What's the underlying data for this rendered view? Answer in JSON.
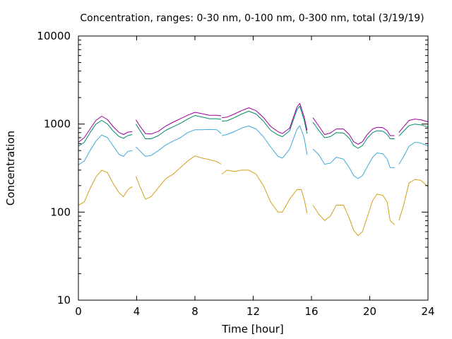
{
  "chart_data": {
    "type": "line",
    "title": "Concentration, ranges: 0-30 nm, 0-100 nm, 0-300 nm, total (3/19/19)",
    "xlabel": "Time [hour]",
    "ylabel": "Concentration",
    "xlim": [
      0,
      24
    ],
    "ylim": [
      10,
      10000
    ],
    "yscale": "log",
    "grid": false,
    "legend": "none",
    "x_ticks": [
      0,
      4,
      8,
      12,
      16,
      20,
      24
    ],
    "x_tick_labels": [
      "0",
      "4",
      "8",
      "12",
      "16",
      "20",
      "24"
    ],
    "y_ticks": [
      10,
      100,
      1000,
      10000
    ],
    "y_tick_labels": [
      "10",
      "100",
      "1000",
      "10000"
    ],
    "series": [
      {
        "color": "#d4a017",
        "segments": [
          [
            [
              0,
              120
            ],
            [
              0.4,
              130
            ],
            [
              0.8,
              185
            ],
            [
              1.2,
              250
            ],
            [
              1.6,
              300
            ],
            [
              2.0,
              280
            ],
            [
              2.4,
              210
            ],
            [
              2.8,
              165
            ],
            [
              3.1,
              150
            ],
            [
              3.4,
              180
            ],
            [
              3.7,
              195
            ]
          ],
          [
            [
              3.95,
              255
            ],
            [
              4.2,
              200
            ],
            [
              4.6,
              140
            ],
            [
              5.0,
              150
            ],
            [
              5.5,
              190
            ],
            [
              6.0,
              240
            ],
            [
              6.5,
              270
            ],
            [
              7.0,
              320
            ],
            [
              7.5,
              380
            ],
            [
              8.0,
              435
            ],
            [
              8.5,
              410
            ],
            [
              9.0,
              395
            ],
            [
              9.5,
              375
            ],
            [
              9.8,
              350
            ]
          ],
          [
            [
              9.85,
              270
            ],
            [
              10.2,
              300
            ],
            [
              10.7,
              290
            ],
            [
              11.2,
              300
            ],
            [
              11.7,
              300
            ],
            [
              12.2,
              270
            ],
            [
              12.7,
              200
            ],
            [
              13.2,
              130
            ],
            [
              13.7,
              100
            ],
            [
              14.0,
              100
            ],
            [
              14.5,
              140
            ],
            [
              15.0,
              180
            ],
            [
              15.3,
              180
            ],
            [
              15.5,
              140
            ],
            [
              15.7,
              97
            ]
          ],
          [
            [
              16.1,
              120
            ],
            [
              16.5,
              95
            ],
            [
              16.9,
              80
            ],
            [
              17.3,
              90
            ],
            [
              17.7,
              120
            ],
            [
              18.2,
              120
            ],
            [
              18.6,
              85
            ],
            [
              18.9,
              62
            ],
            [
              19.2,
              54
            ],
            [
              19.5,
              60
            ],
            [
              19.8,
              85
            ],
            [
              20.2,
              135
            ],
            [
              20.5,
              160
            ],
            [
              20.9,
              155
            ],
            [
              21.2,
              130
            ],
            [
              21.4,
              80
            ],
            [
              21.7,
              72
            ]
          ],
          [
            [
              22.0,
              80
            ],
            [
              22.3,
              115
            ],
            [
              22.7,
              215
            ],
            [
              23.1,
              235
            ],
            [
              23.5,
              230
            ],
            [
              24.0,
              195
            ]
          ]
        ]
      },
      {
        "color": "#3fa9d8",
        "segments": [
          [
            [
              0,
              345
            ],
            [
              0.4,
              380
            ],
            [
              0.8,
              500
            ],
            [
              1.2,
              640
            ],
            [
              1.6,
              750
            ],
            [
              2.0,
              700
            ],
            [
              2.4,
              560
            ],
            [
              2.8,
              450
            ],
            [
              3.1,
              430
            ],
            [
              3.4,
              490
            ],
            [
              3.7,
              500
            ]
          ],
          [
            [
              3.95,
              550
            ],
            [
              4.2,
              500
            ],
            [
              4.6,
              430
            ],
            [
              5.0,
              440
            ],
            [
              5.5,
              500
            ],
            [
              6.0,
              580
            ],
            [
              6.5,
              640
            ],
            [
              7.0,
              700
            ],
            [
              7.5,
              800
            ],
            [
              8.0,
              860
            ],
            [
              8.5,
              860
            ],
            [
              9.0,
              870
            ],
            [
              9.5,
              860
            ],
            [
              9.8,
              780
            ]
          ],
          [
            [
              9.85,
              740
            ],
            [
              10.2,
              760
            ],
            [
              10.7,
              820
            ],
            [
              11.2,
              900
            ],
            [
              11.7,
              950
            ],
            [
              12.2,
              880
            ],
            [
              12.7,
              720
            ],
            [
              13.2,
              550
            ],
            [
              13.7,
              430
            ],
            [
              14.0,
              410
            ],
            [
              14.5,
              520
            ],
            [
              15.0,
              870
            ],
            [
              15.2,
              960
            ],
            [
              15.5,
              700
            ],
            [
              15.7,
              450
            ]
          ],
          [
            [
              16.1,
              520
            ],
            [
              16.5,
              450
            ],
            [
              16.9,
              350
            ],
            [
              17.3,
              360
            ],
            [
              17.7,
              420
            ],
            [
              18.2,
              400
            ],
            [
              18.6,
              320
            ],
            [
              18.9,
              260
            ],
            [
              19.2,
              240
            ],
            [
              19.5,
              260
            ],
            [
              19.8,
              320
            ],
            [
              20.2,
              420
            ],
            [
              20.5,
              470
            ],
            [
              20.9,
              460
            ],
            [
              21.2,
              400
            ],
            [
              21.4,
              320
            ],
            [
              21.7,
              320
            ]
          ],
          [
            [
              22.0,
              350
            ],
            [
              22.3,
              420
            ],
            [
              22.7,
              560
            ],
            [
              23.1,
              620
            ],
            [
              23.5,
              610
            ],
            [
              24.0,
              560
            ]
          ]
        ]
      },
      {
        "color": "#008b6f",
        "segments": [
          [
            [
              0,
              560
            ],
            [
              0.4,
              620
            ],
            [
              0.8,
              800
            ],
            [
              1.2,
              1000
            ],
            [
              1.6,
              1100
            ],
            [
              2.0,
              1000
            ],
            [
              2.4,
              830
            ],
            [
              2.8,
              720
            ],
            [
              3.1,
              690
            ],
            [
              3.4,
              740
            ],
            [
              3.7,
              760
            ]
          ],
          [
            [
              3.95,
              1000
            ],
            [
              4.2,
              860
            ],
            [
              4.6,
              680
            ],
            [
              5.0,
              680
            ],
            [
              5.5,
              740
            ],
            [
              6.0,
              850
            ],
            [
              6.5,
              930
            ],
            [
              7.0,
              1020
            ],
            [
              7.5,
              1140
            ],
            [
              8.0,
              1250
            ],
            [
              8.5,
              1200
            ],
            [
              9.0,
              1150
            ],
            [
              9.5,
              1150
            ],
            [
              9.8,
              1130
            ]
          ],
          [
            [
              9.85,
              1080
            ],
            [
              10.2,
              1090
            ],
            [
              10.7,
              1180
            ],
            [
              11.2,
              1300
            ],
            [
              11.7,
              1400
            ],
            [
              12.2,
              1300
            ],
            [
              12.7,
              1080
            ],
            [
              13.2,
              850
            ],
            [
              13.7,
              750
            ],
            [
              14.0,
              720
            ],
            [
              14.5,
              840
            ],
            [
              15.0,
              1450
            ],
            [
              15.2,
              1600
            ],
            [
              15.5,
              1100
            ],
            [
              15.7,
              780
            ]
          ],
          [
            [
              16.1,
              1050
            ],
            [
              16.5,
              850
            ],
            [
              16.9,
              700
            ],
            [
              17.3,
              720
            ],
            [
              17.7,
              800
            ],
            [
              18.2,
              790
            ],
            [
              18.6,
              690
            ],
            [
              18.9,
              570
            ],
            [
              19.2,
              530
            ],
            [
              19.5,
              570
            ],
            [
              19.8,
              680
            ],
            [
              20.2,
              800
            ],
            [
              20.5,
              840
            ],
            [
              20.9,
              830
            ],
            [
              21.2,
              760
            ],
            [
              21.4,
              680
            ],
            [
              21.7,
              680
            ]
          ],
          [
            [
              22.0,
              730
            ],
            [
              22.3,
              820
            ],
            [
              22.7,
              960
            ],
            [
              23.1,
              1000
            ],
            [
              23.5,
              980
            ],
            [
              24.0,
              930
            ]
          ]
        ]
      },
      {
        "color": "#9b009b",
        "segments": [
          [
            [
              0,
              620
            ],
            [
              0.4,
              700
            ],
            [
              0.8,
              880
            ],
            [
              1.2,
              1100
            ],
            [
              1.6,
              1230
            ],
            [
              2.0,
              1120
            ],
            [
              2.4,
              930
            ],
            [
              2.8,
              800
            ],
            [
              3.1,
              760
            ],
            [
              3.4,
              810
            ],
            [
              3.7,
              820
            ]
          ],
          [
            [
              3.95,
              1120
            ],
            [
              4.2,
              960
            ],
            [
              4.6,
              780
            ],
            [
              5.0,
              770
            ],
            [
              5.5,
              830
            ],
            [
              6.0,
              950
            ],
            [
              6.5,
              1050
            ],
            [
              7.0,
              1150
            ],
            [
              7.5,
              1260
            ],
            [
              8.0,
              1360
            ],
            [
              8.5,
              1310
            ],
            [
              9.0,
              1260
            ],
            [
              9.5,
              1260
            ],
            [
              9.8,
              1240
            ]
          ],
          [
            [
              9.85,
              1180
            ],
            [
              10.2,
              1200
            ],
            [
              10.7,
              1300
            ],
            [
              11.2,
              1420
            ],
            [
              11.7,
              1530
            ],
            [
              12.2,
              1420
            ],
            [
              12.7,
              1190
            ],
            [
              13.2,
              940
            ],
            [
              13.7,
              820
            ],
            [
              14.0,
              780
            ],
            [
              14.5,
              900
            ],
            [
              15.0,
              1550
            ],
            [
              15.2,
              1720
            ],
            [
              15.5,
              1200
            ],
            [
              15.7,
              850
            ]
          ],
          [
            [
              16.1,
              1180
            ],
            [
              16.5,
              950
            ],
            [
              16.9,
              760
            ],
            [
              17.3,
              790
            ],
            [
              17.7,
              880
            ],
            [
              18.2,
              880
            ],
            [
              18.6,
              760
            ],
            [
              18.9,
              630
            ],
            [
              19.2,
              590
            ],
            [
              19.5,
              630
            ],
            [
              19.8,
              750
            ],
            [
              20.2,
              880
            ],
            [
              20.5,
              920
            ],
            [
              20.9,
              910
            ],
            [
              21.2,
              840
            ],
            [
              21.4,
              740
            ],
            [
              21.7,
              740
            ]
          ],
          [
            [
              22.0,
              800
            ],
            [
              22.3,
              920
            ],
            [
              22.7,
              1100
            ],
            [
              23.1,
              1140
            ],
            [
              23.5,
              1120
            ],
            [
              24.0,
              1060
            ]
          ]
        ]
      }
    ]
  }
}
